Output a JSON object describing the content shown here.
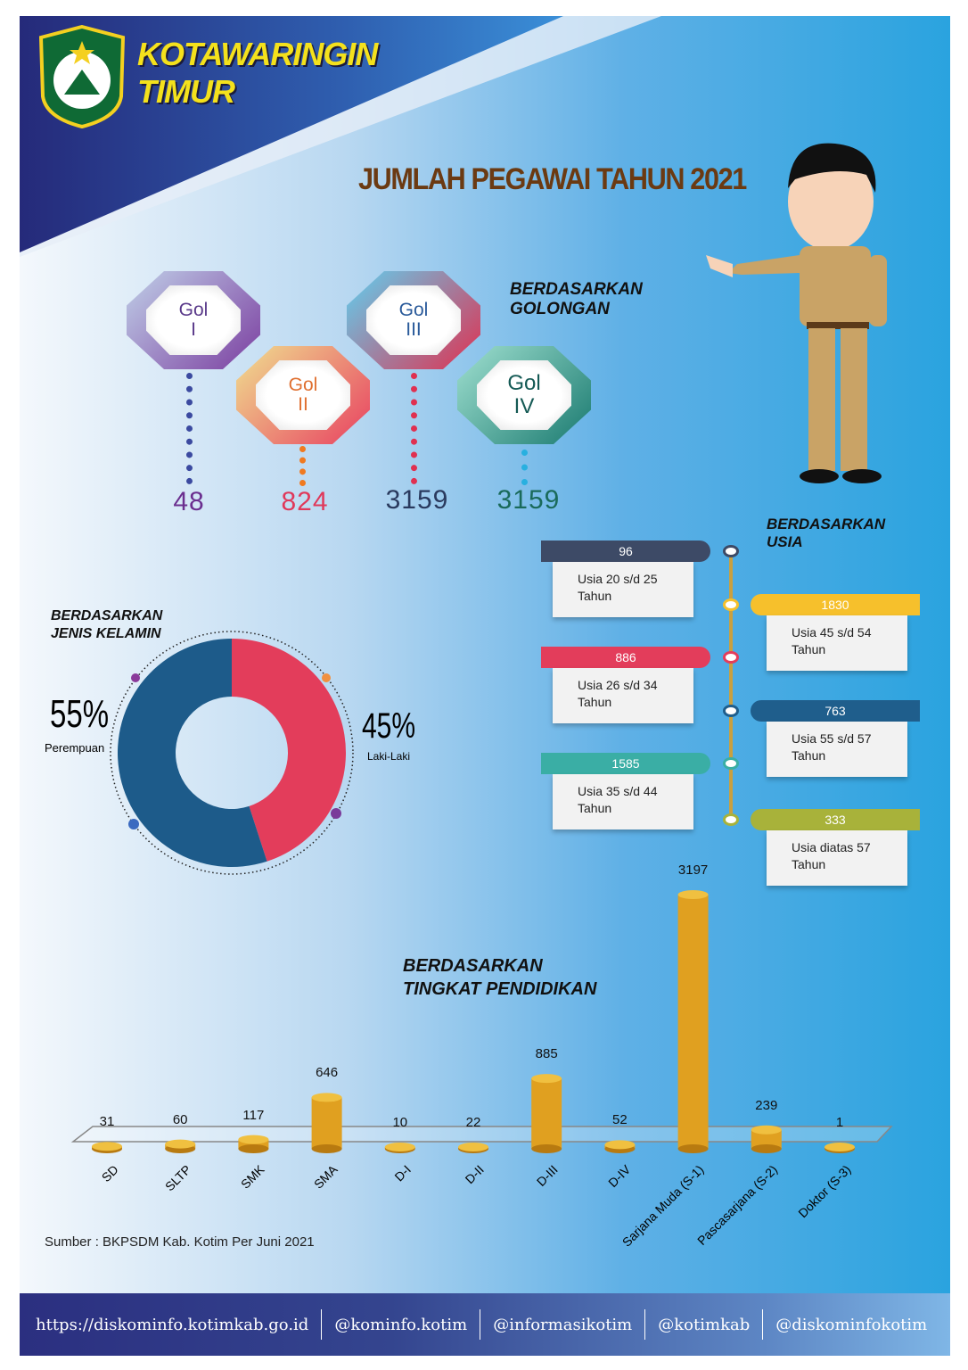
{
  "header": {
    "brand_line1": "KOTAWARINGIN",
    "brand_line2": "TIMUR",
    "title": "JUMLAH PEGAWAI TAHUN 2021"
  },
  "golongan": {
    "heading_line1": "BERDASARKAN",
    "heading_line2": "GOLONGAN",
    "items": [
      {
        "label": "Gol",
        "roman": "I",
        "value": "48",
        "color": "#6b2f8f"
      },
      {
        "label": "Gol",
        "roman": "II",
        "value": "824",
        "color": "#e0385a"
      },
      {
        "label": "Gol",
        "roman": "III",
        "value": "3159",
        "color": "#2a3a5e"
      },
      {
        "label": "Gol",
        "roman": "IV",
        "value": "3159",
        "color": "#1a6a5a"
      }
    ]
  },
  "usia": {
    "heading_line1": "BERDASARKAN",
    "heading_line2": "USIA",
    "items": [
      {
        "value": "96",
        "line1": "Usia 20 s/d 25",
        "line2": "Tahun",
        "color": "#3d4a66"
      },
      {
        "value": "1830",
        "line1": "Usia 45 s/d 54",
        "line2": "Tahun",
        "color": "#f6c02c"
      },
      {
        "value": "886",
        "line1": "Usia 26 s/d 34",
        "line2": "Tahun",
        "color": "#e33d5b"
      },
      {
        "value": "763",
        "line1": "Usia 55 s/d 57",
        "line2": "Tahun",
        "color": "#1f5e8c"
      },
      {
        "value": "1585",
        "line1": "Usia 35 s/d 44",
        "line2": "Tahun",
        "color": "#3aaea5"
      },
      {
        "value": "333",
        "line1": "Usia diatas 57",
        "line2": "Tahun",
        "color": "#a8b23a"
      }
    ]
  },
  "gender": {
    "heading_line1": "BERDASARKAN",
    "heading_line2": "JENIS KELAMIN",
    "female_pct": "55%",
    "female_label": "Perempuan",
    "male_pct": "45%",
    "male_label": "Laki-Laki",
    "female_color": "#1d5b8a",
    "male_color": "#e33d5b"
  },
  "pendidikan": {
    "heading_line1": "BERDASARKAN",
    "heading_line2": "TINGKAT PENDIDIKAN"
  },
  "source": "Sumber : BKPSDM Kab. Kotim Per Juni 2021",
  "footer": [
    "https://diskominfo.kotimkab.go.id",
    "@kominfo.kotim",
    "@informasikotim",
    "@kotimkab",
    "@diskominfokotim"
  ],
  "chart_data": [
    {
      "type": "bar",
      "categories": [
        "SD",
        "SLTP",
        "SMK",
        "SMA",
        "D-I",
        "D-II",
        "D-III",
        "D-IV",
        "Sarjana Muda (S-1)",
        "Pascasarjana (S-2)",
        "Doktor (S-3)"
      ],
      "values": [
        31,
        60,
        117,
        646,
        10,
        22,
        885,
        52,
        3197,
        239,
        1
      ],
      "bar_color": "#e0a020"
    },
    {
      "type": "pie",
      "categories": [
        "Perempuan",
        "Laki-Laki"
      ],
      "values": [
        55,
        45
      ]
    }
  ]
}
